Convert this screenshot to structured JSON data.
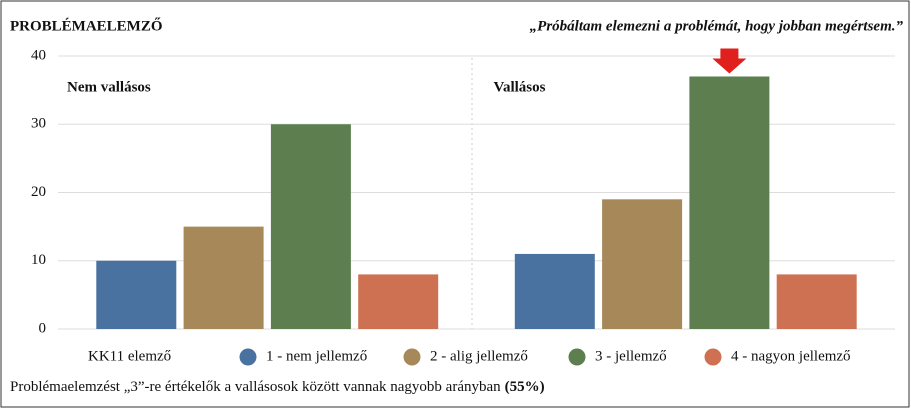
{
  "chart_data": {
    "type": "bar",
    "title": "PROBLÉMAELEMZŐ",
    "subtitle": "„Próbáltam elemezni a problémát, hogy jobban megértsem.”",
    "categories": [
      "Nem vallásos",
      "Vallásos"
    ],
    "legend_title": "KK11 elemző",
    "series": [
      {
        "name": "1 - nem jellemző",
        "color": "#4a72a0",
        "values": [
          10,
          11
        ]
      },
      {
        "name": "2 - alig jellemző",
        "color": "#a68859",
        "values": [
          15,
          19
        ]
      },
      {
        "name": "3 - jellemző",
        "color": "#5d7f50",
        "values": [
          30,
          37
        ]
      },
      {
        "name": "4 - nagyon jellemző",
        "color": "#cd7152",
        "values": [
          8,
          8
        ]
      }
    ],
    "ylim": [
      0,
      40
    ],
    "yticks": [
      0,
      10,
      20,
      30,
      40
    ],
    "grid": true,
    "note": "Problémaelemzést „3”-re értékelők a vallásosok között vannak nagyobb arányban",
    "note_highlight": "(55%)"
  }
}
